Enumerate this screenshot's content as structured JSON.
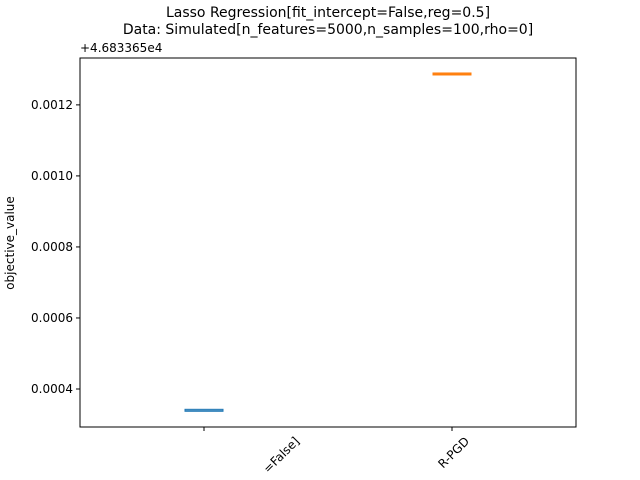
{
  "chart_data": {
    "type": "box",
    "title": "Lasso Regression[fit_intercept=False,reg=0.5]",
    "subtitle": "Data: Simulated[n_features=5000,n_samples=100,rho=0]",
    "y_label": "objective_value",
    "y_offset_label": "+4.683365e4",
    "categories": [
      "=False]",
      "R-PGD"
    ],
    "values": [
      0.00034,
      0.001287
    ],
    "colors": [
      "#1f77b4",
      "#ff7f0e"
    ],
    "ylim": [
      0.000293,
      0.001332
    ],
    "yticks": [
      0.0004,
      0.0006,
      0.0008,
      {
        "value": 0.001,
        "label": "0.0010"
      },
      0.0012
    ],
    "grid": false
  }
}
